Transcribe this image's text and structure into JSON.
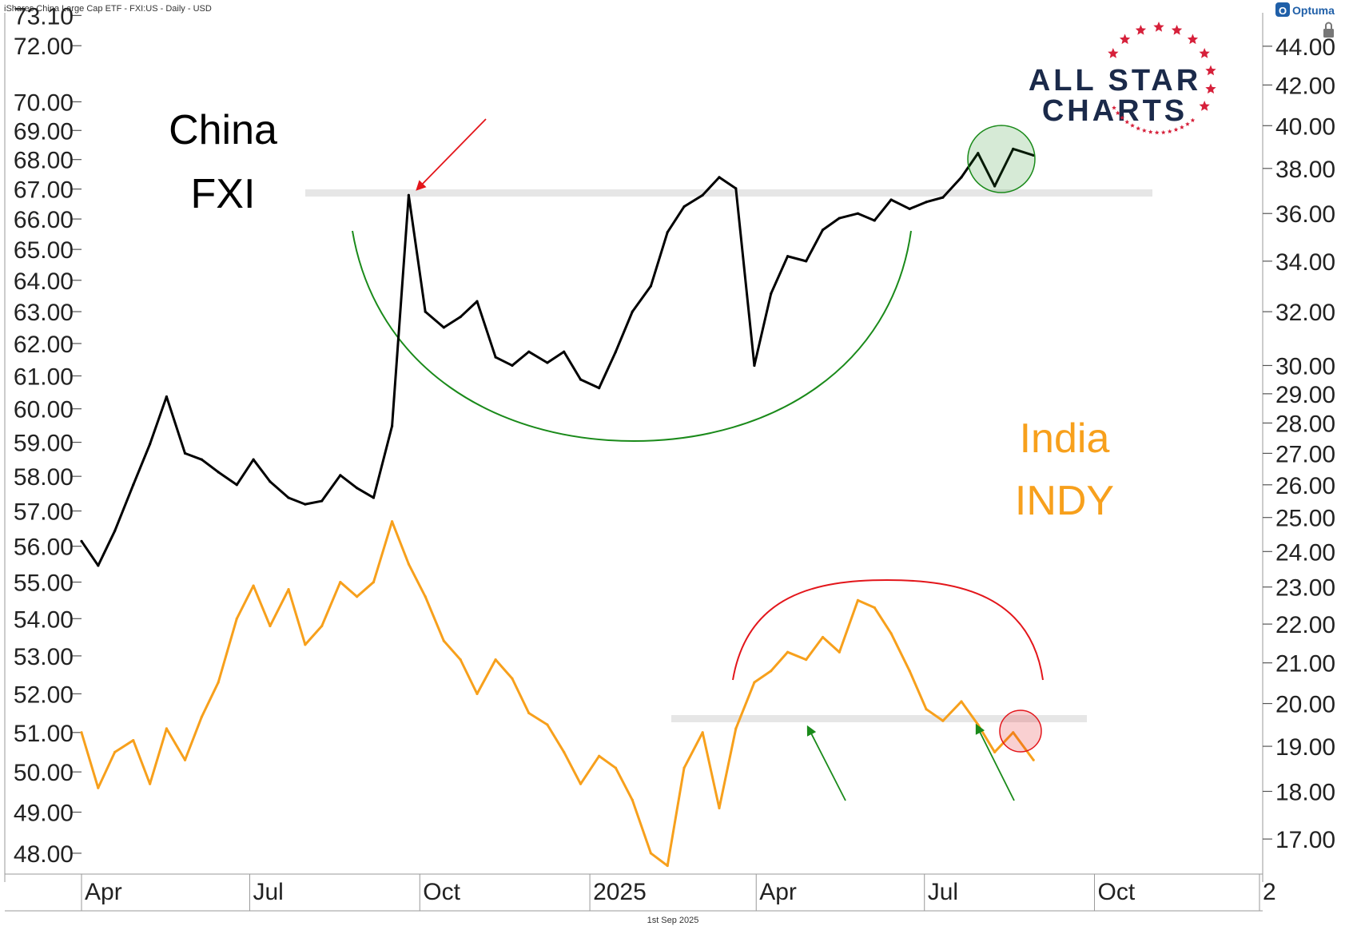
{
  "header": {
    "title": "iShares China Large Cap ETF - FXI:US - Daily - USD",
    "brand": "Optuma"
  },
  "footer": {
    "date": "1st Sep 2025"
  },
  "logo": {
    "line1": "ALL STAR",
    "line2": "CHARTS",
    "text_color": "#1b2a4a",
    "star_color": "#d6203a"
  },
  "colors": {
    "fxi": "#000000",
    "indy": "#f7a01c",
    "resistance": "#e6e6e6",
    "cup": "#1a8a1a",
    "dome": "#e3161b",
    "up_arrow": "#1a8a1a",
    "down_arrow": "#e3161b",
    "good_circle": "#1a8a1a",
    "bad_circle": "#e3161b"
  },
  "chart_data": {
    "type": "line",
    "x_ticks": [
      "Apr",
      "Jul",
      "Oct",
      "2025",
      "Apr",
      "Jul",
      "Oct",
      "2"
    ],
    "x_range": [
      "2024-04-01",
      "2025-12-31"
    ],
    "left_axis": {
      "scale": "log",
      "range": [
        47.5,
        73.2
      ],
      "ticks": [
        "73.10",
        "72.00",
        "70.00",
        "69.00",
        "68.00",
        "67.00",
        "66.00",
        "65.00",
        "64.00",
        "63.00",
        "62.00",
        "61.00",
        "60.00",
        "59.00",
        "58.00",
        "57.00",
        "56.00",
        "55.00",
        "54.00",
        "53.00",
        "52.00",
        "51.00",
        "50.00",
        "49.00",
        "48.00"
      ]
    },
    "right_axis": {
      "scale": "log",
      "range": [
        16.3,
        45.8
      ],
      "ticks": [
        "44.00",
        "42.00",
        "40.00",
        "38.00",
        "36.00",
        "34.00",
        "32.00",
        "30.00",
        "29.00",
        "28.00",
        "27.00",
        "26.00",
        "25.00",
        "24.00",
        "23.00",
        "22.00",
        "21.00",
        "20.00",
        "19.00",
        "18.00",
        "17.00"
      ]
    },
    "series": [
      {
        "name": "FXI",
        "axis": "right",
        "x": [
          "2024-04-01",
          "2024-04-10",
          "2024-04-19",
          "2024-04-29",
          "2024-05-08",
          "2024-05-17",
          "2024-05-27",
          "2024-06-05",
          "2024-06-14",
          "2024-06-24",
          "2024-07-03",
          "2024-07-12",
          "2024-07-22",
          "2024-07-31",
          "2024-08-09",
          "2024-08-19",
          "2024-08-28",
          "2024-09-06",
          "2024-09-16",
          "2024-09-25",
          "2024-10-04",
          "2024-10-14",
          "2024-10-23",
          "2024-11-01",
          "2024-11-11",
          "2024-11-20",
          "2024-11-29",
          "2024-12-09",
          "2024-12-18",
          "2024-12-27",
          "2025-01-06",
          "2025-01-15",
          "2025-01-24",
          "2025-02-03",
          "2025-02-12",
          "2025-02-21",
          "2025-03-03",
          "2025-03-12",
          "2025-03-21",
          "2025-03-31",
          "2025-04-09",
          "2025-04-18",
          "2025-04-28",
          "2025-05-07",
          "2025-05-16",
          "2025-05-26",
          "2025-06-04",
          "2025-06-13",
          "2025-06-23",
          "2025-07-02",
          "2025-07-11",
          "2025-07-21",
          "2025-07-30",
          "2025-08-08",
          "2025-08-18",
          "2025-08-29"
        ],
        "values": [
          24.3,
          23.6,
          24.6,
          26.0,
          27.3,
          28.9,
          27.0,
          26.8,
          26.4,
          26.0,
          26.8,
          26.1,
          25.6,
          25.4,
          25.5,
          26.3,
          25.9,
          25.6,
          27.9,
          36.8,
          32.0,
          31.4,
          31.8,
          32.4,
          30.3,
          30.0,
          30.5,
          30.1,
          30.5,
          29.5,
          29.2,
          30.5,
          32.0,
          33.0,
          35.2,
          36.3,
          36.8,
          37.6,
          37.1,
          30.0,
          32.7,
          34.2,
          34.0,
          35.3,
          35.8,
          36.0,
          35.7,
          36.6,
          36.2,
          36.5,
          36.7,
          37.6,
          38.7,
          37.2,
          38.9,
          38.6
        ]
      },
      {
        "name": "INDY",
        "axis": "left",
        "x": [
          "2024-04-01",
          "2024-04-10",
          "2024-04-19",
          "2024-04-29",
          "2024-05-08",
          "2024-05-17",
          "2024-05-27",
          "2024-06-05",
          "2024-06-14",
          "2024-06-24",
          "2024-07-03",
          "2024-07-12",
          "2024-07-22",
          "2024-07-31",
          "2024-08-09",
          "2024-08-19",
          "2024-08-28",
          "2024-09-06",
          "2024-09-16",
          "2024-09-25",
          "2024-10-04",
          "2024-10-14",
          "2024-10-23",
          "2024-11-01",
          "2024-11-11",
          "2024-11-20",
          "2024-11-29",
          "2024-12-09",
          "2024-12-18",
          "2024-12-27",
          "2025-01-06",
          "2025-01-15",
          "2025-01-24",
          "2025-02-03",
          "2025-02-12",
          "2025-02-21",
          "2025-03-03",
          "2025-03-12",
          "2025-03-21",
          "2025-03-31",
          "2025-04-09",
          "2025-04-18",
          "2025-04-28",
          "2025-05-07",
          "2025-05-16",
          "2025-05-26",
          "2025-06-04",
          "2025-06-13",
          "2025-06-23",
          "2025-07-02",
          "2025-07-11",
          "2025-07-21",
          "2025-07-30",
          "2025-08-08",
          "2025-08-18",
          "2025-08-29"
        ],
        "values": [
          51.0,
          49.6,
          50.5,
          50.8,
          49.7,
          51.1,
          50.3,
          51.4,
          52.3,
          54.0,
          54.9,
          53.8,
          54.8,
          53.3,
          53.8,
          55.0,
          54.6,
          55.0,
          56.7,
          55.5,
          54.6,
          53.4,
          52.9,
          52.0,
          52.9,
          52.4,
          51.5,
          51.2,
          50.5,
          49.7,
          50.4,
          50.1,
          49.3,
          48.0,
          47.7,
          50.1,
          51.0,
          49.1,
          51.1,
          52.3,
          52.6,
          53.1,
          52.9,
          53.5,
          53.1,
          54.5,
          54.3,
          53.6,
          52.6,
          51.6,
          51.3,
          51.8,
          51.2,
          50.5,
          51.0,
          50.3
        ]
      }
    ]
  },
  "annotations": {
    "china_label_1": "China",
    "china_label_2": "FXI",
    "india_label_1": "India",
    "india_label_2": "INDY"
  }
}
